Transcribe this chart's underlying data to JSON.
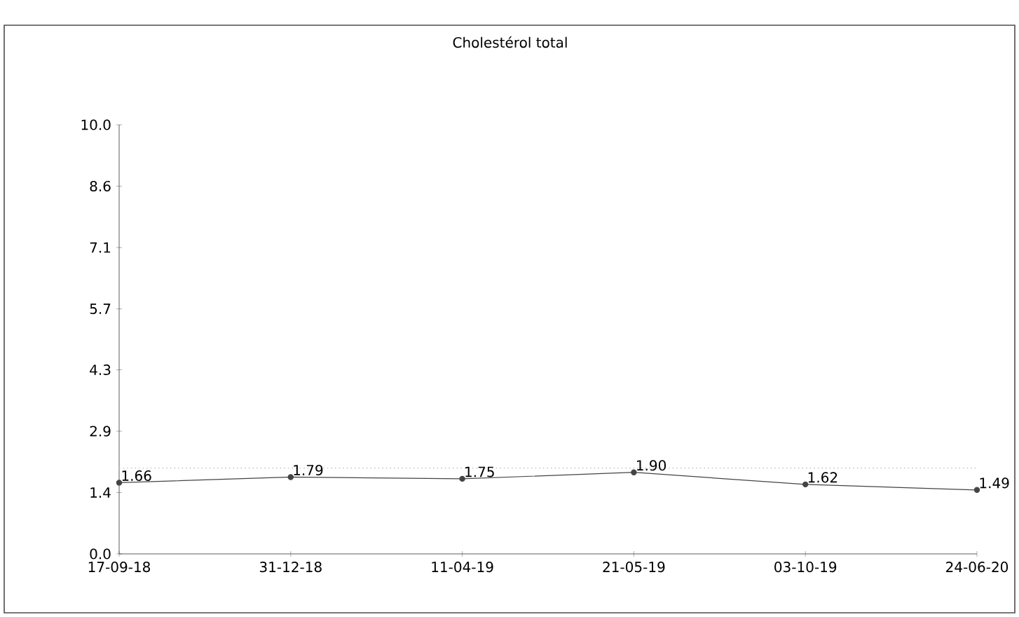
{
  "chart_data": {
    "type": "line",
    "title": "Cholestérol total",
    "categories": [
      "17-09-18",
      "31-12-18",
      "11-04-19",
      "21-05-19",
      "03-10-19",
      "24-06-20"
    ],
    "values": [
      1.66,
      1.79,
      1.75,
      1.9,
      1.62,
      1.49
    ],
    "color": "#444444",
    "marker": "circle",
    "value_labels": [
      "1.66",
      "1.79",
      "1.75",
      "1.90",
      "1.62",
      "1.49"
    ],
    "ylim": [
      0,
      10
    ],
    "yticks": [
      {
        "value": 0,
        "label": "0.0"
      },
      {
        "value": 1.43,
        "label": "1.4"
      },
      {
        "value": 2.86,
        "label": "2.9"
      },
      {
        "value": 4.29,
        "label": "4.3"
      },
      {
        "value": 5.71,
        "label": "5.7"
      },
      {
        "value": 7.14,
        "label": "7.1"
      },
      {
        "value": 8.57,
        "label": "8.6"
      },
      {
        "value": 10,
        "label": "10.0"
      }
    ],
    "ref_lines": [
      {
        "axis": "y",
        "value": 2.0,
        "color": "#cccccc",
        "line_style": "dotted"
      }
    ]
  }
}
